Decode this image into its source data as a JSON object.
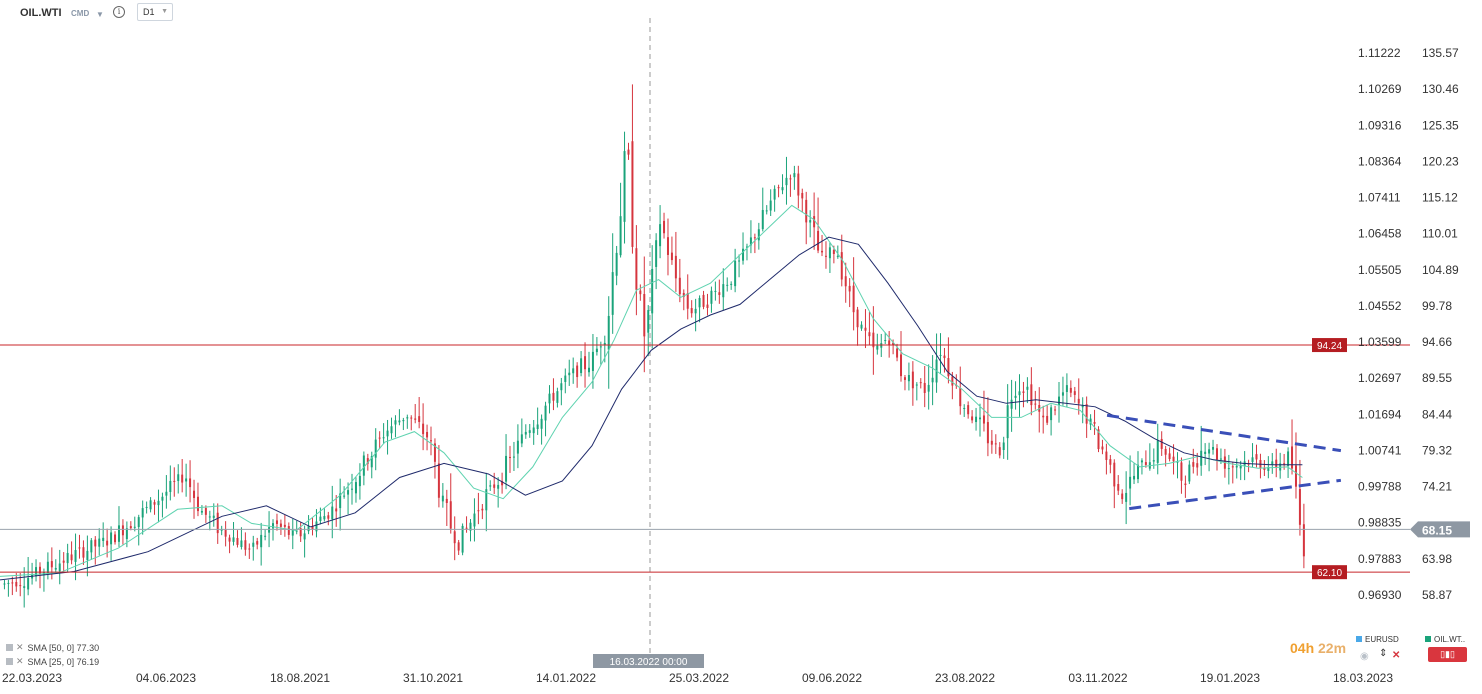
{
  "toolbar": {
    "symbol": "OIL.WTI",
    "instrument_type": "CMD",
    "timeframe": "D1"
  },
  "indicators": [
    {
      "label": "SMA [50, 0] 77.30",
      "color": "#1f2a6b"
    },
    {
      "label": "SMA [25, 0] 76.19",
      "color": "#5fd3b0"
    }
  ],
  "legend": {
    "eurusd": "EURUSD",
    "oil": "OIL.WT.."
  },
  "timer": {
    "part1": "04h",
    "part2": "22m"
  },
  "crosshair_date": "16.03.2022 00:00",
  "colors": {
    "up": "#1aa37a",
    "down": "#d6353e",
    "sma50": "#1f2a6b",
    "sma25": "#5fd3b0",
    "level": "#c8262a",
    "trend": "#3a4fb8",
    "price_box": "#8e98a3"
  },
  "chart_data": {
    "type": "candlestick",
    "symbol": "OIL.WTI",
    "timeframe": "D1",
    "x_ticks": [
      "22.03.2023",
      "04.06.2023",
      "18.08.2021",
      "31.10.2021",
      "14.01.2022",
      "25.03.2022",
      "09.06.2022",
      "23.08.2022",
      "03.11.2022",
      "19.01.2023",
      "18.03.2023"
    ],
    "y_left_ticks": [
      "1.11222",
      "1.10269",
      "1.09316",
      "1.08364",
      "1.07411",
      "1.06458",
      "1.05505",
      "1.04552",
      "1.03599",
      "1.02697",
      "1.01694",
      "1.00741",
      "0.99788",
      "0.98835",
      "0.97883",
      "0.96930"
    ],
    "y_right_ticks": [
      "135.57",
      "130.46",
      "125.35",
      "120.23",
      "115.12",
      "110.01",
      "104.89",
      "99.78",
      "94.66",
      "89.55",
      "84.44",
      "79.32",
      "74.21",
      "68.15",
      "63.98",
      "58.87"
    ],
    "ylim": [
      53.76,
      135.57
    ],
    "horizontal_levels": [
      {
        "label": "94.24",
        "value": 94.24
      },
      {
        "label": "62.10",
        "value": 62.1
      }
    ],
    "current_price": {
      "label": "68.15",
      "value": 68.15
    },
    "trend_upper": [
      {
        "x": 0.748,
        "y": 84.3
      },
      {
        "x": 0.906,
        "y": 79.3
      }
    ],
    "trend_lower": [
      {
        "x": 0.763,
        "y": 71.1
      },
      {
        "x": 0.906,
        "y": 75.1
      }
    ],
    "series_path": [
      [
        0.0,
        60.2
      ],
      [
        0.02,
        61.5
      ],
      [
        0.04,
        63.5
      ],
      [
        0.06,
        65.5
      ],
      [
        0.075,
        66.8
      ],
      [
        0.09,
        69.5
      ],
      [
        0.11,
        73.0
      ],
      [
        0.125,
        76.0
      ],
      [
        0.135,
        71.0
      ],
      [
        0.15,
        68.0
      ],
      [
        0.17,
        65.2
      ],
      [
        0.185,
        69.0
      ],
      [
        0.2,
        67.0
      ],
      [
        0.225,
        71.0
      ],
      [
        0.245,
        77.0
      ],
      [
        0.26,
        82.0
      ],
      [
        0.275,
        84.5
      ],
      [
        0.29,
        81.0
      ],
      [
        0.3,
        71.0
      ],
      [
        0.31,
        66.0
      ],
      [
        0.325,
        72.0
      ],
      [
        0.34,
        76.0
      ],
      [
        0.355,
        82.0
      ],
      [
        0.37,
        86.0
      ],
      [
        0.385,
        90.0
      ],
      [
        0.4,
        92.0
      ],
      [
        0.41,
        97.0
      ],
      [
        0.418,
        112.0
      ],
      [
        0.424,
        122.0
      ],
      [
        0.43,
        104.0
      ],
      [
        0.436,
        95.0
      ],
      [
        0.446,
        112.0
      ],
      [
        0.456,
        104.0
      ],
      [
        0.466,
        99.0
      ],
      [
        0.48,
        101.0
      ],
      [
        0.495,
        104.0
      ],
      [
        0.51,
        110.0
      ],
      [
        0.525,
        116.0
      ],
      [
        0.535,
        119.0
      ],
      [
        0.545,
        113.0
      ],
      [
        0.555,
        106.0
      ],
      [
        0.565,
        108.0
      ],
      [
        0.575,
        100.0
      ],
      [
        0.59,
        93.0
      ],
      [
        0.6,
        95.5
      ],
      [
        0.61,
        90.0
      ],
      [
        0.625,
        88.0
      ],
      [
        0.635,
        94.0
      ],
      [
        0.65,
        86.0
      ],
      [
        0.665,
        82.0
      ],
      [
        0.675,
        79.0
      ],
      [
        0.685,
        89.0
      ],
      [
        0.695,
        88.0
      ],
      [
        0.705,
        83.0
      ],
      [
        0.72,
        88.0
      ],
      [
        0.735,
        84.0
      ],
      [
        0.748,
        78.0
      ],
      [
        0.758,
        73.0
      ],
      [
        0.77,
        77.0
      ],
      [
        0.785,
        80.0
      ],
      [
        0.8,
        75.0
      ],
      [
        0.815,
        80.5
      ],
      [
        0.83,
        77.0
      ],
      [
        0.845,
        78.0
      ],
      [
        0.86,
        77.0
      ],
      [
        0.872,
        78.5
      ],
      [
        0.88,
        66.0
      ]
    ],
    "sma50_path": [
      [
        0.0,
        61.0
      ],
      [
        0.05,
        62.2
      ],
      [
        0.1,
        65.0
      ],
      [
        0.15,
        70.0
      ],
      [
        0.18,
        71.5
      ],
      [
        0.21,
        68.5
      ],
      [
        0.24,
        70.5
      ],
      [
        0.27,
        75.5
      ],
      [
        0.3,
        77.5
      ],
      [
        0.33,
        76.0
      ],
      [
        0.355,
        73.0
      ],
      [
        0.38,
        75.0
      ],
      [
        0.4,
        80.0
      ],
      [
        0.42,
        88.0
      ],
      [
        0.44,
        93.5
      ],
      [
        0.46,
        96.5
      ],
      [
        0.48,
        98.5
      ],
      [
        0.5,
        100.0
      ],
      [
        0.52,
        103.5
      ],
      [
        0.54,
        107.0
      ],
      [
        0.56,
        109.5
      ],
      [
        0.58,
        108.5
      ],
      [
        0.6,
        103.0
      ],
      [
        0.62,
        97.0
      ],
      [
        0.64,
        90.5
      ],
      [
        0.66,
        87.0
      ],
      [
        0.68,
        86.0
      ],
      [
        0.7,
        86.5
      ],
      [
        0.72,
        86.0
      ],
      [
        0.74,
        85.5
      ],
      [
        0.76,
        83.5
      ],
      [
        0.78,
        81.0
      ],
      [
        0.8,
        79.0
      ],
      [
        0.82,
        78.0
      ],
      [
        0.84,
        77.5
      ],
      [
        0.86,
        77.3
      ],
      [
        0.88,
        77.3
      ]
    ],
    "sma25_path": [
      [
        0.0,
        61.5
      ],
      [
        0.04,
        62.0
      ],
      [
        0.08,
        65.5
      ],
      [
        0.12,
        71.0
      ],
      [
        0.15,
        71.5
      ],
      [
        0.17,
        69.0
      ],
      [
        0.2,
        68.0
      ],
      [
        0.23,
        73.0
      ],
      [
        0.26,
        80.5
      ],
      [
        0.28,
        82.0
      ],
      [
        0.3,
        79.0
      ],
      [
        0.32,
        74.0
      ],
      [
        0.34,
        72.5
      ],
      [
        0.36,
        77.0
      ],
      [
        0.38,
        84.0
      ],
      [
        0.4,
        89.0
      ],
      [
        0.415,
        95.0
      ],
      [
        0.43,
        102.0
      ],
      [
        0.445,
        103.5
      ],
      [
        0.46,
        101.0
      ],
      [
        0.48,
        103.0
      ],
      [
        0.5,
        107.0
      ],
      [
        0.52,
        111.0
      ],
      [
        0.535,
        114.0
      ],
      [
        0.55,
        112.0
      ],
      [
        0.57,
        106.0
      ],
      [
        0.59,
        98.0
      ],
      [
        0.61,
        93.0
      ],
      [
        0.63,
        91.0
      ],
      [
        0.65,
        88.0
      ],
      [
        0.67,
        84.0
      ],
      [
        0.69,
        84.0
      ],
      [
        0.71,
        86.0
      ],
      [
        0.73,
        85.0
      ],
      [
        0.75,
        80.0
      ],
      [
        0.77,
        77.0
      ],
      [
        0.79,
        77.5
      ],
      [
        0.81,
        78.5
      ],
      [
        0.83,
        77.5
      ],
      [
        0.85,
        76.8
      ],
      [
        0.87,
        77.0
      ],
      [
        0.88,
        75.5
      ]
    ]
  }
}
